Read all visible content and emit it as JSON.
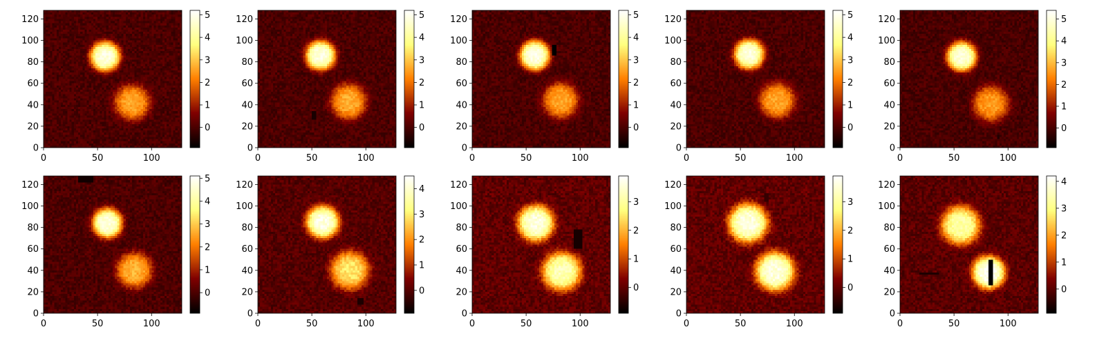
{
  "chart_data": [
    {
      "type": "heatmap",
      "xlim": [
        0,
        128
      ],
      "ylim": [
        0,
        128
      ],
      "xticks": [
        0,
        50,
        100
      ],
      "yticks": [
        0,
        20,
        40,
        60,
        80,
        100,
        120
      ],
      "colorbar": {
        "min": -0.9,
        "max": 5.2,
        "ticks": [
          0,
          1,
          2,
          3,
          4,
          5
        ]
      },
      "colormap": "afmhot",
      "blobs": [
        {
          "x": 57,
          "y": 85,
          "sigma": 10,
          "peak": 4.8
        },
        {
          "x": 82,
          "y": 42,
          "sigma": 12,
          "peak": 2.6
        }
      ],
      "artifacts": []
    },
    {
      "type": "heatmap",
      "xlim": [
        0,
        128
      ],
      "ylim": [
        0,
        128
      ],
      "xticks": [
        0,
        50,
        100
      ],
      "yticks": [
        0,
        20,
        40,
        60,
        80,
        100,
        120
      ],
      "colorbar": {
        "min": -0.9,
        "max": 5.2,
        "ticks": [
          0,
          1,
          2,
          3,
          4,
          5
        ]
      },
      "colormap": "afmhot",
      "blobs": [
        {
          "x": 58,
          "y": 86,
          "sigma": 10,
          "peak": 4.8
        },
        {
          "x": 84,
          "y": 43,
          "sigma": 12,
          "peak": 2.7
        }
      ],
      "artifacts": [
        {
          "x0": 50,
          "x1": 54,
          "y0": 27,
          "y1": 33,
          "value": -0.6
        }
      ]
    },
    {
      "type": "heatmap",
      "xlim": [
        0,
        128
      ],
      "ylim": [
        0,
        128
      ],
      "xticks": [
        0,
        50,
        100
      ],
      "yticks": [
        0,
        20,
        40,
        60,
        80,
        100,
        120
      ],
      "colorbar": {
        "min": -0.9,
        "max": 5.2,
        "ticks": [
          0,
          1,
          2,
          3,
          4,
          5
        ]
      },
      "colormap": "afmhot",
      "blobs": [
        {
          "x": 58,
          "y": 86,
          "sigma": 10,
          "peak": 4.9
        },
        {
          "x": 82,
          "y": 44,
          "sigma": 12,
          "peak": 2.6
        }
      ],
      "artifacts": [
        {
          "x0": 75,
          "x1": 78,
          "y0": 87,
          "y1": 96,
          "value": -0.9
        }
      ]
    },
    {
      "type": "heatmap",
      "xlim": [
        0,
        128
      ],
      "ylim": [
        0,
        128
      ],
      "xticks": [
        0,
        50,
        100
      ],
      "yticks": [
        0,
        20,
        40,
        60,
        80,
        100,
        120
      ],
      "colorbar": {
        "min": -0.9,
        "max": 5.2,
        "ticks": [
          0,
          1,
          2,
          3,
          4,
          5
        ]
      },
      "colormap": "afmhot",
      "blobs": [
        {
          "x": 58,
          "y": 87,
          "sigma": 10,
          "peak": 4.8
        },
        {
          "x": 84,
          "y": 44,
          "sigma": 12,
          "peak": 2.6
        }
      ],
      "artifacts": []
    },
    {
      "type": "heatmap",
      "xlim": [
        0,
        128
      ],
      "ylim": [
        0,
        128
      ],
      "xticks": [
        0,
        50,
        100
      ],
      "yticks": [
        0,
        20,
        40,
        60,
        80,
        100,
        120
      ],
      "colorbar": {
        "min": -0.9,
        "max": 5.4,
        "ticks": [
          0,
          1,
          2,
          3,
          4,
          5
        ]
      },
      "colormap": "afmhot",
      "blobs": [
        {
          "x": 57,
          "y": 85,
          "sigma": 10,
          "peak": 4.9
        },
        {
          "x": 84,
          "y": 41,
          "sigma": 12,
          "peak": 2.6
        }
      ],
      "artifacts": [
        {
          "x0": 90,
          "x1": 92,
          "y0": 8,
          "y1": 12,
          "value": -0.5
        }
      ]
    },
    {
      "type": "heatmap",
      "xlim": [
        0,
        128
      ],
      "ylim": [
        0,
        128
      ],
      "xticks": [
        0,
        50,
        100
      ],
      "yticks": [
        0,
        20,
        40,
        60,
        80,
        100,
        120
      ],
      "colorbar": {
        "min": -0.9,
        "max": 5.1,
        "ticks": [
          0,
          1,
          2,
          3,
          4,
          5
        ]
      },
      "colormap": "afmhot",
      "blobs": [
        {
          "x": 59,
          "y": 84,
          "sigma": 10,
          "peak": 4.7
        },
        {
          "x": 84,
          "y": 40,
          "sigma": 12,
          "peak": 2.7
        }
      ],
      "artifacts": [
        {
          "x0": 33,
          "x1": 45,
          "y0": 123,
          "y1": 128,
          "value": -0.7
        }
      ]
    },
    {
      "type": "heatmap",
      "xlim": [
        0,
        128
      ],
      "ylim": [
        0,
        128
      ],
      "xticks": [
        0,
        50,
        100
      ],
      "yticks": [
        0,
        20,
        40,
        60,
        80,
        100,
        120
      ],
      "colorbar": {
        "min": -0.9,
        "max": 4.5,
        "ticks": [
          0,
          1,
          2,
          3,
          4
        ]
      },
      "colormap": "afmhot",
      "blobs": [
        {
          "x": 60,
          "y": 85,
          "sigma": 11,
          "peak": 4.2
        },
        {
          "x": 85,
          "y": 40,
          "sigma": 13,
          "peak": 2.9
        }
      ],
      "artifacts": [
        {
          "x0": 93,
          "x1": 97,
          "y0": 9,
          "y1": 13,
          "value": -0.6
        }
      ]
    },
    {
      "type": "heatmap",
      "xlim": [
        0,
        128
      ],
      "ylim": [
        0,
        128
      ],
      "xticks": [
        0,
        50,
        100
      ],
      "yticks": [
        0,
        20,
        40,
        60,
        80,
        100,
        120
      ],
      "colorbar": {
        "min": -0.9,
        "max": 3.9,
        "ticks": [
          0,
          1,
          2,
          3
        ]
      },
      "colormap": "afmhot",
      "blobs": [
        {
          "x": 59,
          "y": 84,
          "sigma": 12,
          "peak": 3.6
        },
        {
          "x": 83,
          "y": 39,
          "sigma": 13,
          "peak": 3.2
        }
      ],
      "artifacts": [
        {
          "x0": 94,
          "x1": 101,
          "y0": 60,
          "y1": 77,
          "value": -0.7
        }
      ]
    },
    {
      "type": "heatmap",
      "xlim": [
        0,
        128
      ],
      "ylim": [
        0,
        128
      ],
      "xticks": [
        0,
        50,
        100
      ],
      "yticks": [
        0,
        20,
        40,
        60,
        80,
        100,
        120
      ],
      "colorbar": {
        "min": -0.9,
        "max": 3.9,
        "ticks": [
          0,
          1,
          2,
          3
        ]
      },
      "colormap": "afmhot",
      "blobs": [
        {
          "x": 57,
          "y": 84,
          "sigma": 13,
          "peak": 3.6
        },
        {
          "x": 82,
          "y": 39,
          "sigma": 13,
          "peak": 3.6
        }
      ],
      "artifacts": [
        {
          "x0": 73,
          "x1": 75,
          "y0": 104,
          "y1": 112,
          "value": -0.4
        }
      ]
    },
    {
      "type": "heatmap",
      "xlim": [
        0,
        128
      ],
      "ylim": [
        0,
        128
      ],
      "xticks": [
        0,
        50,
        100
      ],
      "yticks": [
        0,
        20,
        40,
        60,
        80,
        100,
        120
      ],
      "colorbar": {
        "min": -0.9,
        "max": 4.2,
        "ticks": [
          0,
          1,
          2,
          3,
          4
        ]
      },
      "colormap": "afmhot",
      "blobs": [
        {
          "x": 56,
          "y": 82,
          "sigma": 13,
          "peak": 3.3
        },
        {
          "x": 82,
          "y": 38,
          "sigma": 11,
          "peak": 4.1
        }
      ],
      "artifacts": [
        {
          "x0": 82,
          "x1": 85,
          "y0": 26,
          "y1": 50,
          "value": -0.9
        },
        {
          "x0": 19,
          "x1": 36,
          "y0": 36,
          "y1": 38,
          "value": -0.6
        }
      ]
    }
  ]
}
